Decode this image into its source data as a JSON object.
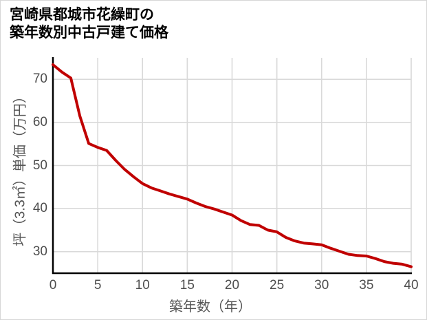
{
  "title": {
    "line1": "宮崎県都城市花繰町の",
    "line2": "築年数別中古戸建て価格"
  },
  "chart_data": {
    "type": "line",
    "title": "宮崎県都城市花繰町の築年数別中古戸建て価格",
    "xlabel": "築年数（年）",
    "ylabel": "坪（3.3㎡）単価（万円）",
    "xlim": [
      0,
      40
    ],
    "ylim": [
      25,
      75
    ],
    "x_ticks": [
      0,
      5,
      10,
      15,
      20,
      25,
      30,
      35,
      40
    ],
    "y_ticks": [
      30,
      40,
      50,
      60,
      70
    ],
    "grid": true,
    "legend": "none",
    "x": [
      0,
      1,
      2,
      3,
      4,
      5,
      6,
      7,
      8,
      9,
      10,
      11,
      12,
      13,
      14,
      15,
      16,
      17,
      18,
      19,
      20,
      21,
      22,
      23,
      24,
      25,
      26,
      27,
      28,
      29,
      30,
      31,
      32,
      33,
      34,
      35,
      36,
      37,
      38,
      39,
      40
    ],
    "series": [
      {
        "name": "坪単価（万円）",
        "values": [
          73.4,
          71.7,
          70.3,
          61.5,
          55.1,
          54.2,
          53.5,
          51.2,
          49.1,
          47.4,
          45.8,
          44.8,
          44.1,
          43.4,
          42.8,
          42.2,
          41.3,
          40.5,
          39.9,
          39.2,
          38.5,
          37.2,
          36.3,
          36.1,
          35.0,
          34.6,
          33.3,
          32.5,
          32.0,
          31.8,
          31.6,
          30.8,
          30.1,
          29.4,
          29.1,
          29.0,
          28.4,
          27.7,
          27.3,
          27.1,
          26.5
        ]
      }
    ],
    "colors": {
      "line": "#c00000",
      "grid": "#d9d9d9",
      "axis": "#000000",
      "tick_label": "#4d4d4d",
      "background": "#ffffff",
      "border": "#d6d6d6"
    }
  }
}
